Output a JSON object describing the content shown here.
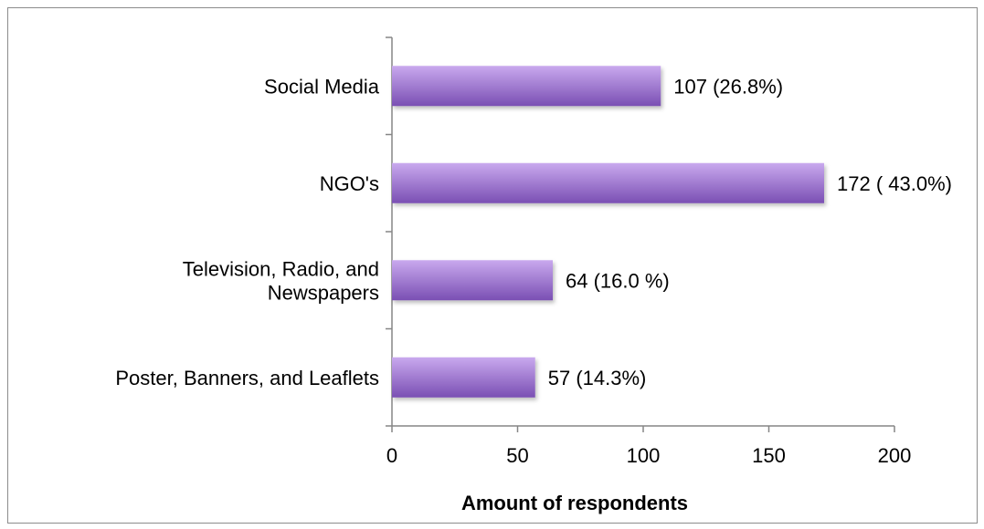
{
  "chart_data": {
    "type": "bar",
    "orientation": "horizontal",
    "categories": [
      "Social Media",
      "NGO's",
      "Television, Radio, and Newspapers",
      "Poster, Banners, and Leaflets"
    ],
    "category_lines": [
      [
        "Social Media"
      ],
      [
        "NGO's"
      ],
      [
        "Television, Radio, and",
        "Newspapers"
      ],
      [
        "Poster, Banners, and Leaflets"
      ]
    ],
    "values": [
      107,
      172,
      64,
      57
    ],
    "data_labels": [
      "107 (26.8%)",
      "172 ( 43.0%)",
      "64 (16.0 %)",
      "57 (14.3%)"
    ],
    "title": "",
    "xlabel": "Amount of respondents",
    "ylabel": "",
    "xlim": [
      0,
      200
    ],
    "x_ticks": [
      0,
      50,
      100,
      150,
      200
    ],
    "grid": false,
    "legend": "none",
    "colors": {
      "bar_light": "#c9a9ee",
      "bar_dark": "#7a4fb3",
      "axis": "#868686"
    }
  }
}
